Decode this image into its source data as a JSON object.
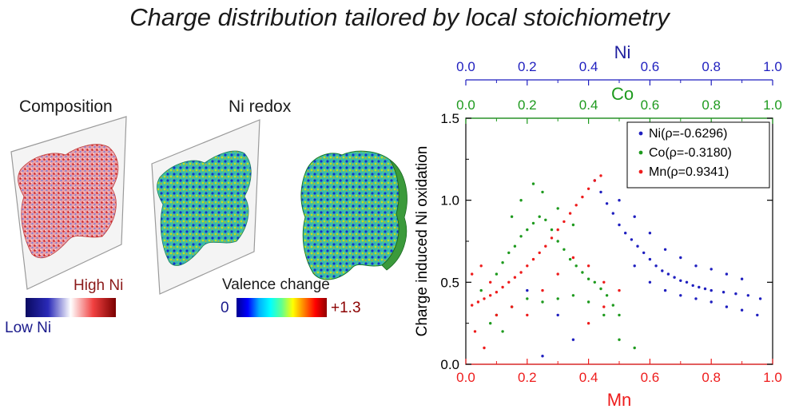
{
  "title": "Charge distribution tailored by local stoichiometry",
  "panels": {
    "composition_label": "Composition",
    "redox_label": "Ni redox",
    "composition_colorbar": {
      "high_label": "High Ni",
      "low_label": "Low Ni",
      "colors": [
        "#0a0a60",
        "#2a2ab8",
        "#ffffff",
        "#f04040",
        "#7a0000"
      ]
    },
    "valence_colorbar": {
      "title": "Valence change",
      "min_label": "0",
      "max_label": "+1.3",
      "colors": [
        "#000090",
        "#0000ff",
        "#00b0ff",
        "#00ffff",
        "#60ff90",
        "#ffff00",
        "#ff8000",
        "#ff0000",
        "#900000"
      ]
    }
  },
  "colors": {
    "ni": "#1f1fbf",
    "co": "#1e9a1e",
    "mn": "#ee1c1c",
    "ni_label": "#1f1f9f",
    "valence_max": "#8b0000"
  },
  "chart_data": {
    "type": "scatter",
    "ylabel": "Charge induced Ni oxidation",
    "bottom_axis": {
      "label": "Mn",
      "range": [
        0.0,
        1.0
      ],
      "ticks": [
        "0.0",
        "0.2",
        "0.4",
        "0.6",
        "0.8",
        "1.0"
      ]
    },
    "top_axis_ni": {
      "label": "Ni",
      "range": [
        0.0,
        1.0
      ],
      "ticks": [
        "0.0",
        "0.2",
        "0.4",
        "0.6",
        "0.8",
        "1.0"
      ]
    },
    "top_axis_co": {
      "label": "Co",
      "range": [
        0.0,
        1.0
      ],
      "ticks": [
        "0.0",
        "0.2",
        "0.4",
        "0.6",
        "0.8",
        "1.0"
      ]
    },
    "y_axis": {
      "range": [
        0.0,
        1.5
      ],
      "ticks": [
        "0.0",
        "0.5",
        "1.0",
        "1.5"
      ]
    },
    "legend_position": "top-right",
    "series": [
      {
        "name": "Ni(ρ=-0.6296)",
        "color": "#1f1fbf",
        "points": [
          [
            0.42,
            1.12
          ],
          [
            0.44,
            1.05
          ],
          [
            0.46,
            0.98
          ],
          [
            0.48,
            0.92
          ],
          [
            0.5,
            0.85
          ],
          [
            0.52,
            0.8
          ],
          [
            0.54,
            0.76
          ],
          [
            0.56,
            0.72
          ],
          [
            0.58,
            0.68
          ],
          [
            0.6,
            0.64
          ],
          [
            0.62,
            0.6
          ],
          [
            0.64,
            0.57
          ],
          [
            0.66,
            0.55
          ],
          [
            0.68,
            0.53
          ],
          [
            0.7,
            0.51
          ],
          [
            0.72,
            0.5
          ],
          [
            0.74,
            0.48
          ],
          [
            0.76,
            0.47
          ],
          [
            0.78,
            0.46
          ],
          [
            0.8,
            0.45
          ],
          [
            0.84,
            0.44
          ],
          [
            0.88,
            0.43
          ],
          [
            0.92,
            0.42
          ],
          [
            0.96,
            0.4
          ],
          [
            0.5,
            1.0
          ],
          [
            0.55,
            0.9
          ],
          [
            0.6,
            0.8
          ],
          [
            0.65,
            0.7
          ],
          [
            0.7,
            0.65
          ],
          [
            0.75,
            0.6
          ],
          [
            0.8,
            0.58
          ],
          [
            0.85,
            0.55
          ],
          [
            0.9,
            0.52
          ],
          [
            0.55,
            0.6
          ],
          [
            0.6,
            0.5
          ],
          [
            0.65,
            0.45
          ],
          [
            0.7,
            0.42
          ],
          [
            0.75,
            0.4
          ],
          [
            0.8,
            0.38
          ],
          [
            0.85,
            0.35
          ],
          [
            0.9,
            0.33
          ],
          [
            0.3,
            0.3
          ],
          [
            0.25,
            0.05
          ],
          [
            0.35,
            0.15
          ],
          [
            0.2,
            0.45
          ],
          [
            0.95,
            0.3
          ]
        ]
      },
      {
        "name": "Co(ρ=-0.3180)",
        "color": "#1e9a1e",
        "points": [
          [
            0.1,
            0.55
          ],
          [
            0.12,
            0.62
          ],
          [
            0.14,
            0.68
          ],
          [
            0.16,
            0.72
          ],
          [
            0.18,
            0.78
          ],
          [
            0.2,
            0.82
          ],
          [
            0.22,
            0.86
          ],
          [
            0.24,
            0.9
          ],
          [
            0.26,
            0.88
          ],
          [
            0.28,
            0.82
          ],
          [
            0.3,
            0.75
          ],
          [
            0.32,
            0.7
          ],
          [
            0.34,
            0.64
          ],
          [
            0.36,
            0.6
          ],
          [
            0.38,
            0.56
          ],
          [
            0.4,
            0.52
          ],
          [
            0.42,
            0.5
          ],
          [
            0.44,
            0.46
          ],
          [
            0.46,
            0.42
          ],
          [
            0.48,
            0.36
          ],
          [
            0.5,
            0.3
          ],
          [
            0.15,
            0.9
          ],
          [
            0.18,
            1.0
          ],
          [
            0.22,
            1.1
          ],
          [
            0.25,
            1.05
          ],
          [
            0.3,
            0.95
          ],
          [
            0.35,
            0.85
          ],
          [
            0.1,
            0.3
          ],
          [
            0.15,
            0.35
          ],
          [
            0.2,
            0.4
          ],
          [
            0.25,
            0.38
          ],
          [
            0.3,
            0.4
          ],
          [
            0.35,
            0.42
          ],
          [
            0.4,
            0.38
          ],
          [
            0.45,
            0.3
          ],
          [
            0.05,
            0.45
          ],
          [
            0.08,
            0.25
          ],
          [
            0.12,
            0.2
          ],
          [
            0.5,
            0.15
          ],
          [
            0.55,
            0.1
          ]
        ]
      },
      {
        "name": "Mn(ρ=0.9341)",
        "color": "#ee1c1c",
        "points": [
          [
            0.02,
            0.36
          ],
          [
            0.04,
            0.38
          ],
          [
            0.06,
            0.4
          ],
          [
            0.08,
            0.42
          ],
          [
            0.1,
            0.44
          ],
          [
            0.12,
            0.47
          ],
          [
            0.14,
            0.5
          ],
          [
            0.16,
            0.53
          ],
          [
            0.18,
            0.56
          ],
          [
            0.2,
            0.6
          ],
          [
            0.22,
            0.64
          ],
          [
            0.24,
            0.68
          ],
          [
            0.26,
            0.72
          ],
          [
            0.28,
            0.77
          ],
          [
            0.3,
            0.82
          ],
          [
            0.32,
            0.87
          ],
          [
            0.34,
            0.92
          ],
          [
            0.36,
            0.97
          ],
          [
            0.38,
            1.02
          ],
          [
            0.4,
            1.07
          ],
          [
            0.42,
            1.12
          ],
          [
            0.44,
            1.15
          ],
          [
            0.02,
            0.55
          ],
          [
            0.05,
            0.6
          ],
          [
            0.08,
            0.5
          ],
          [
            0.1,
            0.3
          ],
          [
            0.15,
            0.35
          ],
          [
            0.2,
            0.3
          ],
          [
            0.25,
            0.45
          ],
          [
            0.3,
            0.55
          ],
          [
            0.35,
            0.65
          ],
          [
            0.4,
            0.6
          ],
          [
            0.45,
            0.5
          ],
          [
            0.03,
            0.2
          ],
          [
            0.06,
            0.1
          ],
          [
            0.4,
            0.25
          ],
          [
            0.45,
            0.35
          ],
          [
            0.5,
            0.45
          ]
        ]
      }
    ]
  }
}
